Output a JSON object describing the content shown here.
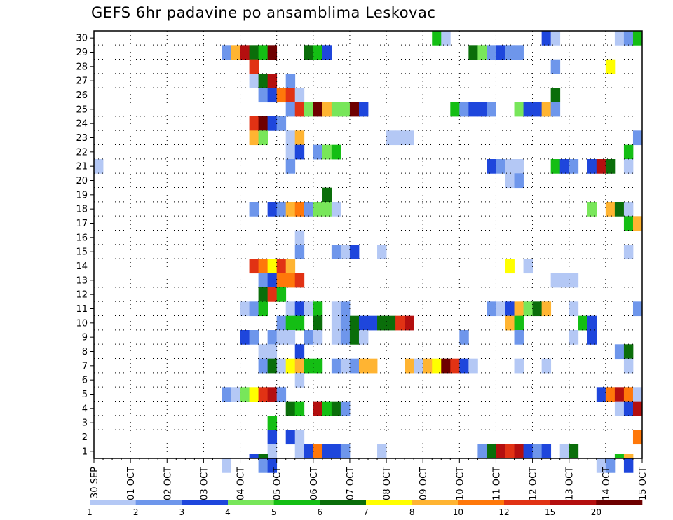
{
  "chart_data": {
    "type": "heatmap",
    "title": "GEFS 6hr padavine po ansamblima Leskovac",
    "x_tick_labels": [
      "30 SEP",
      "01 OCT",
      "02 OCT",
      "03 OCT",
      "04 OCT",
      "05 OCT",
      "06 OCT",
      "07 OCT",
      "08 OCT",
      "09 OCT",
      "10 OCT",
      "11 OCT",
      "12 OCT",
      "13 OCT",
      "14 OCT",
      "15 OCT"
    ],
    "y_tick_labels": [
      "1",
      "2",
      "3",
      "4",
      "5",
      "6",
      "7",
      "8",
      "9",
      "10",
      "11",
      "12",
      "13",
      "14",
      "15",
      "16",
      "17",
      "18",
      "19",
      "20",
      "21",
      "22",
      "23",
      "24",
      "25",
      "26",
      "27",
      "28",
      "29",
      "30"
    ],
    "x_unit": "6-hour step",
    "x_range": [
      0,
      60
    ],
    "y_range": [
      0,
      30
    ],
    "grid": true,
    "legend_position": "bottom",
    "colorbar": {
      "labels": [
        "1",
        "2",
        "3",
        "4",
        "5",
        "6",
        "7",
        "8",
        "10",
        "12",
        "15",
        "20"
      ],
      "colors": [
        "#b4c8f5",
        "#6e96eb",
        "#1e46dc",
        "#78e65a",
        "#14be14",
        "#0a6e0a",
        "#ffff00",
        "#ffb432",
        "#ff780a",
        "#e13214",
        "#b40f0f",
        "#6e0000"
      ]
    },
    "cells_legend": "each cell: [time_step, member, color_index]; member 0 = unlabelled bottom row",
    "cells": [
      [
        37,
        30,
        4
      ],
      [
        38,
        30,
        0
      ],
      [
        49,
        30,
        2
      ],
      [
        50,
        30,
        0
      ],
      [
        57,
        30,
        0
      ],
      [
        58,
        30,
        1
      ],
      [
        59,
        30,
        4
      ],
      [
        14,
        29,
        1
      ],
      [
        15,
        29,
        7
      ],
      [
        16,
        29,
        10
      ],
      [
        17,
        29,
        5
      ],
      [
        18,
        29,
        4
      ],
      [
        19,
        29,
        11
      ],
      [
        23,
        29,
        5
      ],
      [
        24,
        29,
        4
      ],
      [
        25,
        29,
        2
      ],
      [
        41,
        29,
        5
      ],
      [
        42,
        29,
        3
      ],
      [
        43,
        29,
        1
      ],
      [
        44,
        29,
        2
      ],
      [
        45,
        29,
        1
      ],
      [
        46,
        29,
        1
      ],
      [
        17,
        28,
        9
      ],
      [
        50,
        28,
        1
      ],
      [
        56,
        28,
        6
      ],
      [
        17,
        27,
        0
      ],
      [
        18,
        27,
        5
      ],
      [
        19,
        27,
        10
      ],
      [
        21,
        27,
        1
      ],
      [
        18,
        26,
        1
      ],
      [
        19,
        26,
        2
      ],
      [
        20,
        26,
        8
      ],
      [
        21,
        26,
        9
      ],
      [
        22,
        26,
        0
      ],
      [
        50,
        26,
        5
      ],
      [
        21,
        25,
        1
      ],
      [
        22,
        25,
        9
      ],
      [
        23,
        25,
        3
      ],
      [
        24,
        25,
        11
      ],
      [
        25,
        25,
        7
      ],
      [
        26,
        25,
        3
      ],
      [
        27,
        25,
        3
      ],
      [
        28,
        25,
        11
      ],
      [
        29,
        25,
        2
      ],
      [
        39,
        25,
        4
      ],
      [
        40,
        25,
        1
      ],
      [
        41,
        25,
        2
      ],
      [
        42,
        25,
        2
      ],
      [
        43,
        25,
        1
      ],
      [
        46,
        25,
        3
      ],
      [
        47,
        25,
        2
      ],
      [
        48,
        25,
        2
      ],
      [
        49,
        25,
        7
      ],
      [
        50,
        25,
        1
      ],
      [
        17,
        24,
        9
      ],
      [
        18,
        24,
        11
      ],
      [
        19,
        24,
        2
      ],
      [
        20,
        24,
        1
      ],
      [
        17,
        23,
        7
      ],
      [
        18,
        23,
        3
      ],
      [
        21,
        23,
        0
      ],
      [
        22,
        23,
        7
      ],
      [
        32,
        23,
        0
      ],
      [
        33,
        23,
        0
      ],
      [
        34,
        23,
        0
      ],
      [
        59,
        23,
        1
      ],
      [
        21,
        22,
        0
      ],
      [
        22,
        22,
        2
      ],
      [
        24,
        22,
        1
      ],
      [
        25,
        22,
        3
      ],
      [
        26,
        22,
        4
      ],
      [
        58,
        22,
        4
      ],
      [
        0,
        21,
        0
      ],
      [
        21,
        21,
        1
      ],
      [
        43,
        21,
        2
      ],
      [
        44,
        21,
        1
      ],
      [
        45,
        21,
        0
      ],
      [
        46,
        21,
        0
      ],
      [
        50,
        21,
        4
      ],
      [
        51,
        21,
        2
      ],
      [
        52,
        21,
        1
      ],
      [
        54,
        21,
        2
      ],
      [
        55,
        21,
        10
      ],
      [
        56,
        21,
        5
      ],
      [
        58,
        21,
        0
      ],
      [
        45,
        20,
        0
      ],
      [
        46,
        20,
        1
      ],
      [
        25,
        19,
        5
      ],
      [
        17,
        18,
        1
      ],
      [
        19,
        18,
        2
      ],
      [
        20,
        18,
        1
      ],
      [
        21,
        18,
        7
      ],
      [
        22,
        18,
        8
      ],
      [
        23,
        18,
        1
      ],
      [
        24,
        18,
        3
      ],
      [
        25,
        18,
        3
      ],
      [
        26,
        18,
        0
      ],
      [
        54,
        18,
        3
      ],
      [
        56,
        18,
        7
      ],
      [
        57,
        18,
        5
      ],
      [
        58,
        18,
        0
      ],
      [
        58,
        17,
        4
      ],
      [
        59,
        17,
        7
      ],
      [
        22,
        16,
        0
      ],
      [
        22,
        15,
        1
      ],
      [
        26,
        15,
        1
      ],
      [
        27,
        15,
        0
      ],
      [
        28,
        15,
        2
      ],
      [
        31,
        15,
        0
      ],
      [
        58,
        15,
        0
      ],
      [
        17,
        14,
        9
      ],
      [
        18,
        14,
        8
      ],
      [
        19,
        14,
        6
      ],
      [
        20,
        14,
        9
      ],
      [
        21,
        14,
        7
      ],
      [
        45,
        14,
        6
      ],
      [
        47,
        14,
        0
      ],
      [
        18,
        13,
        1
      ],
      [
        19,
        13,
        2
      ],
      [
        20,
        13,
        8
      ],
      [
        21,
        13,
        8
      ],
      [
        22,
        13,
        9
      ],
      [
        50,
        13,
        0
      ],
      [
        51,
        13,
        0
      ],
      [
        52,
        13,
        0
      ],
      [
        18,
        12,
        5
      ],
      [
        19,
        12,
        9
      ],
      [
        20,
        12,
        4
      ],
      [
        16,
        11,
        0
      ],
      [
        17,
        11,
        1
      ],
      [
        18,
        11,
        4
      ],
      [
        21,
        11,
        0
      ],
      [
        22,
        11,
        2
      ],
      [
        23,
        11,
        0
      ],
      [
        24,
        11,
        4
      ],
      [
        26,
        11,
        0
      ],
      [
        27,
        11,
        1
      ],
      [
        43,
        11,
        1
      ],
      [
        44,
        11,
        0
      ],
      [
        45,
        11,
        2
      ],
      [
        46,
        11,
        7
      ],
      [
        47,
        11,
        3
      ],
      [
        48,
        11,
        5
      ],
      [
        49,
        11,
        7
      ],
      [
        52,
        11,
        0
      ],
      [
        59,
        11,
        1
      ],
      [
        20,
        10,
        1
      ],
      [
        21,
        10,
        4
      ],
      [
        22,
        10,
        4
      ],
      [
        24,
        10,
        5
      ],
      [
        26,
        10,
        0
      ],
      [
        27,
        10,
        1
      ],
      [
        28,
        10,
        5
      ],
      [
        29,
        10,
        2
      ],
      [
        30,
        10,
        2
      ],
      [
        31,
        10,
        5
      ],
      [
        32,
        10,
        5
      ],
      [
        33,
        10,
        9
      ],
      [
        34,
        10,
        10
      ],
      [
        45,
        10,
        7
      ],
      [
        46,
        10,
        4
      ],
      [
        53,
        10,
        4
      ],
      [
        54,
        10,
        2
      ],
      [
        16,
        9,
        2
      ],
      [
        17,
        9,
        1
      ],
      [
        19,
        9,
        1
      ],
      [
        20,
        9,
        0
      ],
      [
        21,
        9,
        0
      ],
      [
        23,
        9,
        1
      ],
      [
        24,
        9,
        0
      ],
      [
        26,
        9,
        0
      ],
      [
        27,
        9,
        1
      ],
      [
        28,
        9,
        5
      ],
      [
        29,
        9,
        0
      ],
      [
        40,
        9,
        1
      ],
      [
        46,
        9,
        1
      ],
      [
        52,
        9,
        0
      ],
      [
        54,
        9,
        2
      ],
      [
        18,
        8,
        0
      ],
      [
        19,
        8,
        0
      ],
      [
        22,
        8,
        2
      ],
      [
        57,
        8,
        1
      ],
      [
        58,
        8,
        5
      ],
      [
        18,
        7,
        1
      ],
      [
        19,
        7,
        5
      ],
      [
        20,
        7,
        0
      ],
      [
        21,
        7,
        6
      ],
      [
        22,
        7,
        7
      ],
      [
        23,
        7,
        4
      ],
      [
        24,
        7,
        4
      ],
      [
        26,
        7,
        1
      ],
      [
        27,
        7,
        0
      ],
      [
        28,
        7,
        1
      ],
      [
        29,
        7,
        7
      ],
      [
        30,
        7,
        7
      ],
      [
        34,
        7,
        7
      ],
      [
        35,
        7,
        0
      ],
      [
        36,
        7,
        7
      ],
      [
        37,
        7,
        6
      ],
      [
        38,
        7,
        11
      ],
      [
        39,
        7,
        9
      ],
      [
        40,
        7,
        2
      ],
      [
        41,
        7,
        0
      ],
      [
        46,
        7,
        0
      ],
      [
        49,
        7,
        0
      ],
      [
        58,
        7,
        0
      ],
      [
        22,
        6,
        0
      ],
      [
        14,
        5,
        1
      ],
      [
        15,
        5,
        0
      ],
      [
        16,
        5,
        3
      ],
      [
        17,
        5,
        6
      ],
      [
        18,
        5,
        9
      ],
      [
        19,
        5,
        10
      ],
      [
        20,
        5,
        1
      ],
      [
        55,
        5,
        2
      ],
      [
        56,
        5,
        8
      ],
      [
        57,
        5,
        10
      ],
      [
        58,
        5,
        8
      ],
      [
        59,
        5,
        0
      ],
      [
        21,
        4,
        5
      ],
      [
        22,
        4,
        4
      ],
      [
        24,
        4,
        10
      ],
      [
        25,
        4,
        4
      ],
      [
        26,
        4,
        5
      ],
      [
        27,
        4,
        1
      ],
      [
        57,
        4,
        0
      ],
      [
        58,
        4,
        2
      ],
      [
        59,
        4,
        10
      ],
      [
        19,
        3,
        4
      ],
      [
        19,
        2,
        2
      ],
      [
        21,
        2,
        2
      ],
      [
        22,
        2,
        0
      ],
      [
        59,
        2,
        8
      ],
      [
        19,
        1,
        0
      ],
      [
        22,
        1,
        0
      ],
      [
        23,
        1,
        2
      ],
      [
        24,
        1,
        8
      ],
      [
        25,
        1,
        2
      ],
      [
        26,
        1,
        2
      ],
      [
        27,
        1,
        1
      ],
      [
        31,
        1,
        0
      ],
      [
        42,
        1,
        1
      ],
      [
        43,
        1,
        5
      ],
      [
        44,
        1,
        10
      ],
      [
        45,
        1,
        9
      ],
      [
        46,
        1,
        10
      ],
      [
        47,
        1,
        2
      ],
      [
        48,
        1,
        1
      ],
      [
        49,
        1,
        2
      ],
      [
        51,
        1,
        0
      ],
      [
        52,
        1,
        5
      ],
      [
        14,
        0,
        0
      ],
      [
        18,
        0,
        1
      ],
      [
        19,
        0,
        2
      ],
      [
        55,
        0,
        0
      ],
      [
        56,
        0,
        1
      ],
      [
        58,
        0,
        2
      ],
      [
        17,
        -1,
        2
      ],
      [
        18,
        -1,
        5
      ],
      [
        57,
        -1,
        4
      ],
      [
        58,
        -1,
        7
      ]
    ]
  }
}
